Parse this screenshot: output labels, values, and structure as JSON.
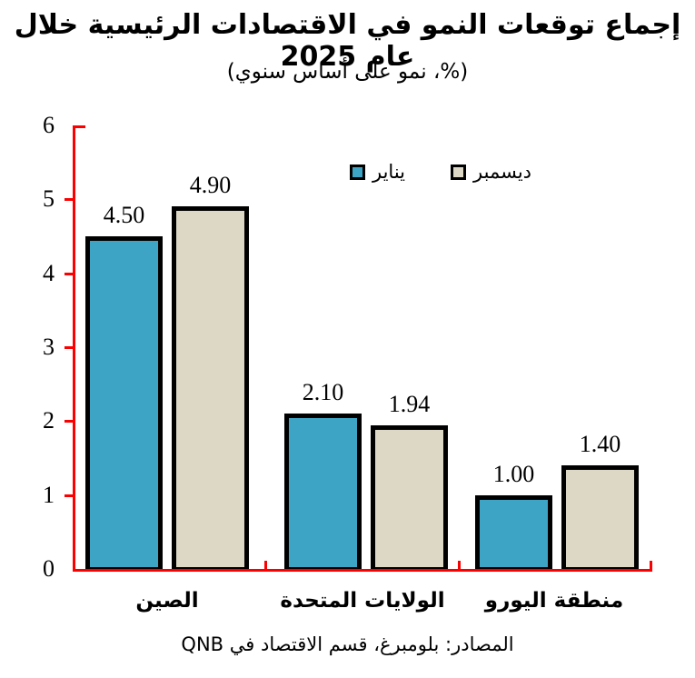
{
  "title": "إجماع توقعات النمو في الاقتصادات الرئيسية خلال عام 2025",
  "subtitle": "(%، نمو على أساس سنوي)",
  "source": "المصادر: بلومبرغ، قسم الاقتصاد في QNB",
  "colors": {
    "axis": "#fb0000",
    "bar_border": "#000000",
    "january_fill": "#3ea4c6",
    "december_fill": "#ddd8c5",
    "text": "#000000"
  },
  "legend": [
    {
      "id": "january",
      "label": "يناير",
      "color": "#3ea4c6"
    },
    {
      "id": "december",
      "label": "ديسمبر",
      "color": "#ddd8c5"
    }
  ],
  "chart_data": {
    "type": "bar",
    "title": "إجماع توقعات النمو في الاقتصادات الرئيسية خلال عام 2025",
    "subtitle": "(%، نمو على أساس سنوي)",
    "categories": [
      "الصين",
      "الولايات المتحدة",
      "منطقة اليورو"
    ],
    "series": [
      {
        "name": "يناير",
        "id": "january",
        "color": "#3ea4c6",
        "values": [
          4.5,
          2.1,
          1.0
        ]
      },
      {
        "name": "ديسمبر",
        "id": "december",
        "color": "#ddd8c5",
        "values": [
          4.9,
          1.94,
          1.4
        ]
      }
    ],
    "value_labels": [
      [
        "4.50",
        "2.10",
        "1.00"
      ],
      [
        "4.90",
        "1.94",
        "1.40"
      ]
    ],
    "ylim": [
      0,
      6
    ],
    "yticks": [
      0,
      1,
      2,
      3,
      4,
      5,
      6
    ],
    "grid": false,
    "legend_position": "top-center",
    "axis_color": "#fb0000"
  }
}
